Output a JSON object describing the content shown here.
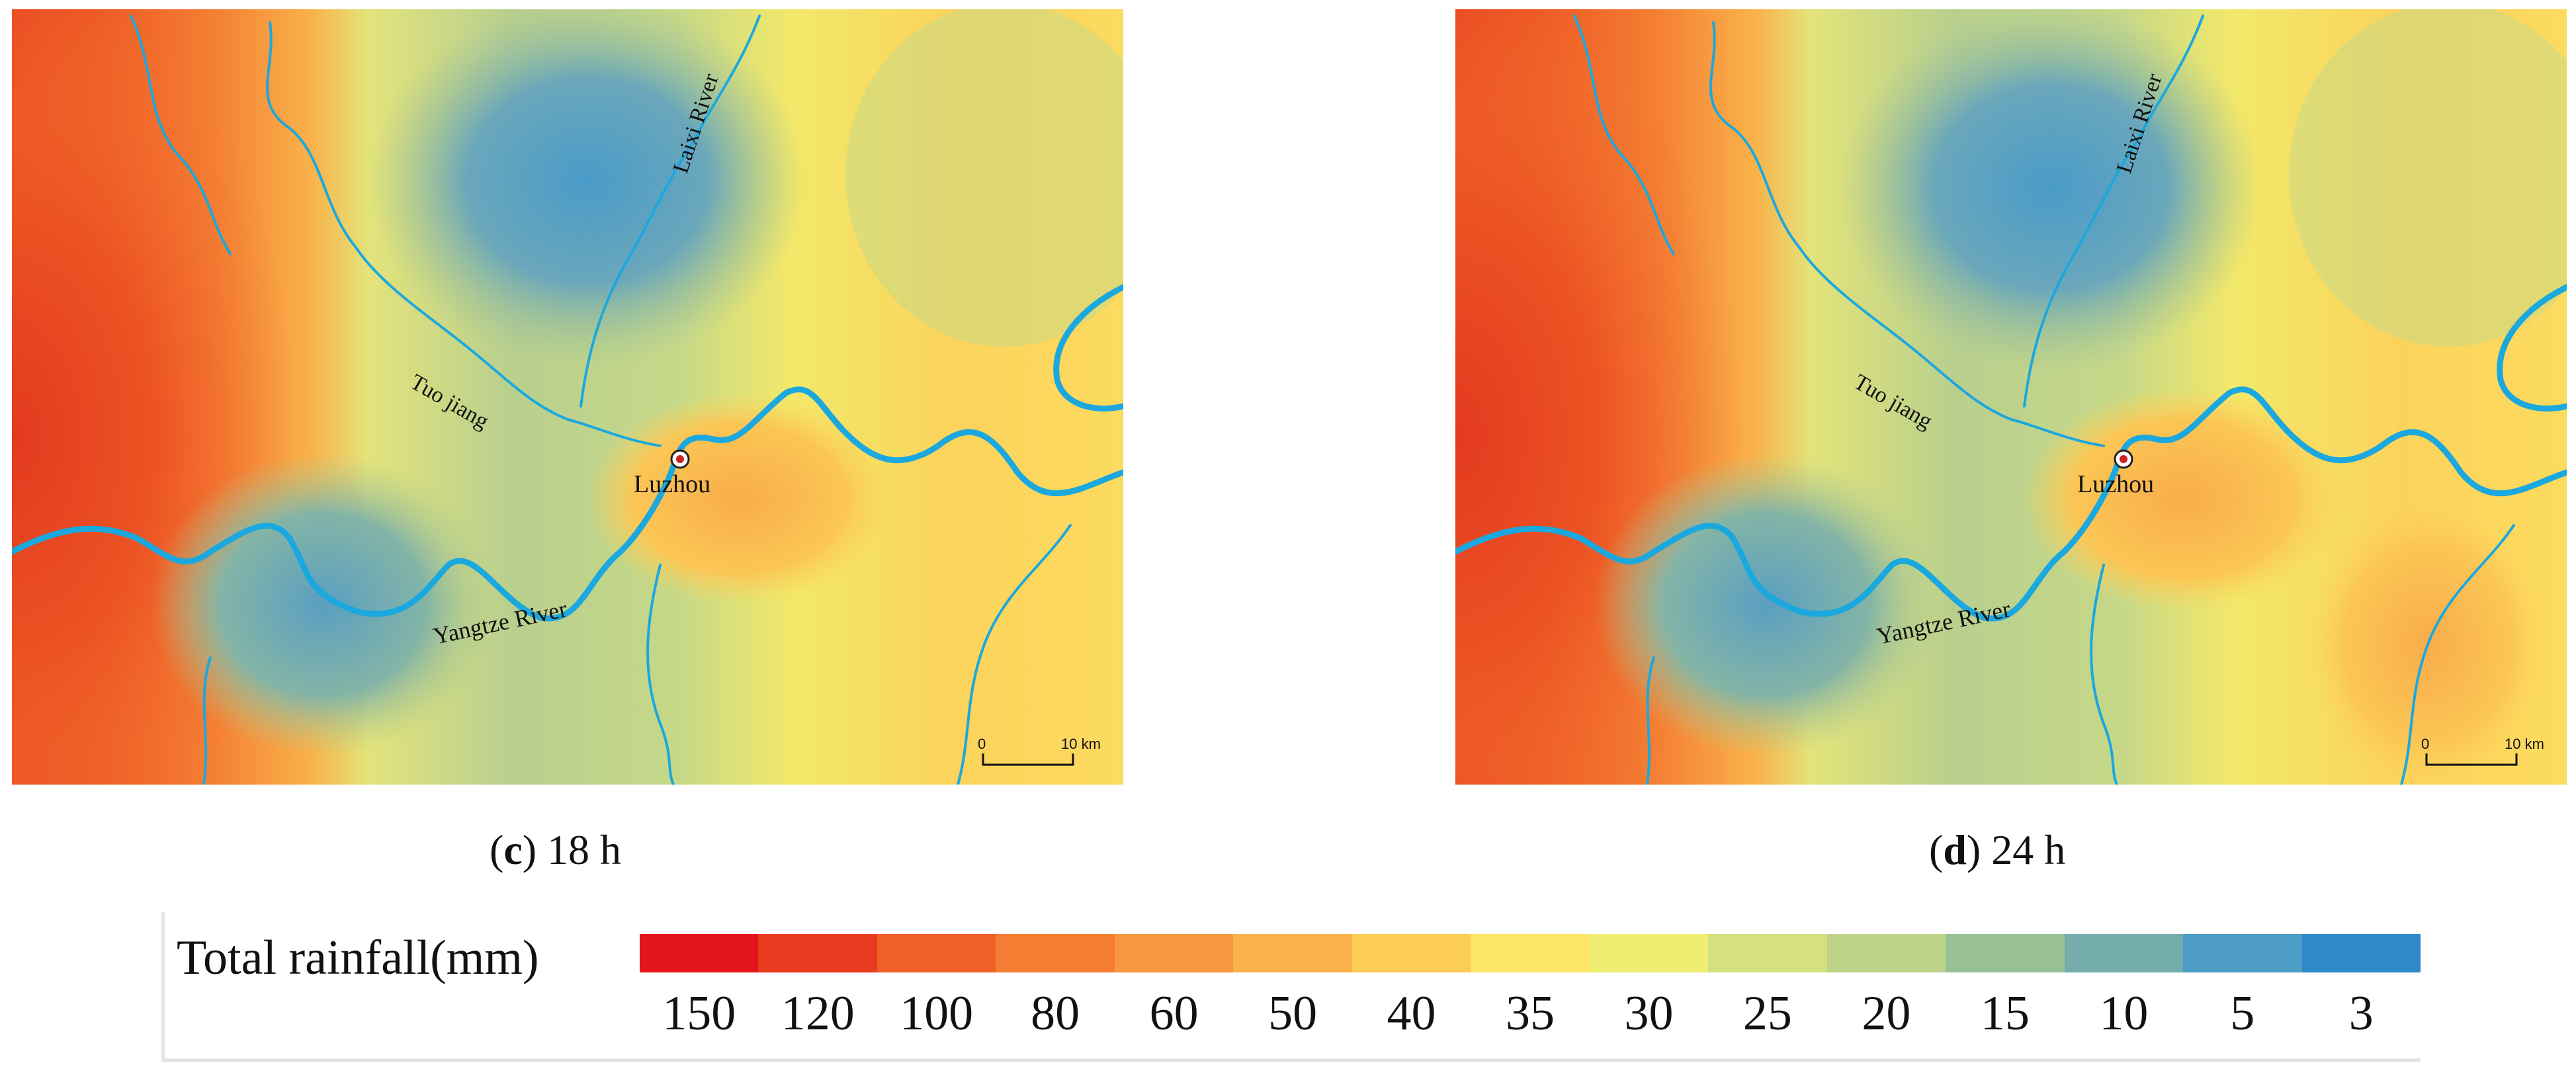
{
  "panels": [
    {
      "id": "c",
      "caption_letter": "c",
      "caption_rest": " 18 h",
      "labels": {
        "laixi": "Laixi River",
        "tuo": "Tuo jiang",
        "city": "Luzhou",
        "yangtze": "Yangtze River"
      },
      "scale": {
        "zero": "0",
        "ten": "10 km"
      }
    },
    {
      "id": "d",
      "caption_letter": "d",
      "caption_rest": " 24 h",
      "labels": {
        "laixi": "Laixi River",
        "tuo": "Tuo jiang",
        "city": "Luzhou",
        "yangtze": "Yangtze River"
      },
      "scale": {
        "zero": "0",
        "ten": "10 km"
      }
    }
  ],
  "legend": {
    "title": "Total rainfall(mm)",
    "colors": [
      "#e2151c",
      "#ea3a1f",
      "#f06026",
      "#f47d33",
      "#f79840",
      "#f9b24a",
      "#fbcd55",
      "#fde565",
      "#f0ee72",
      "#d5e07f",
      "#bdd389",
      "#98c095",
      "#74abab",
      "#4c9cc5",
      "#2e88c9"
    ],
    "ticks": [
      "150",
      "120",
      "100",
      "80",
      "60",
      "50",
      "40",
      "35",
      "30",
      "25",
      "20",
      "15",
      "10",
      "5",
      "3"
    ]
  },
  "map_style": {
    "river_color": "#1ba8de",
    "city_marker": "#cc2222"
  }
}
